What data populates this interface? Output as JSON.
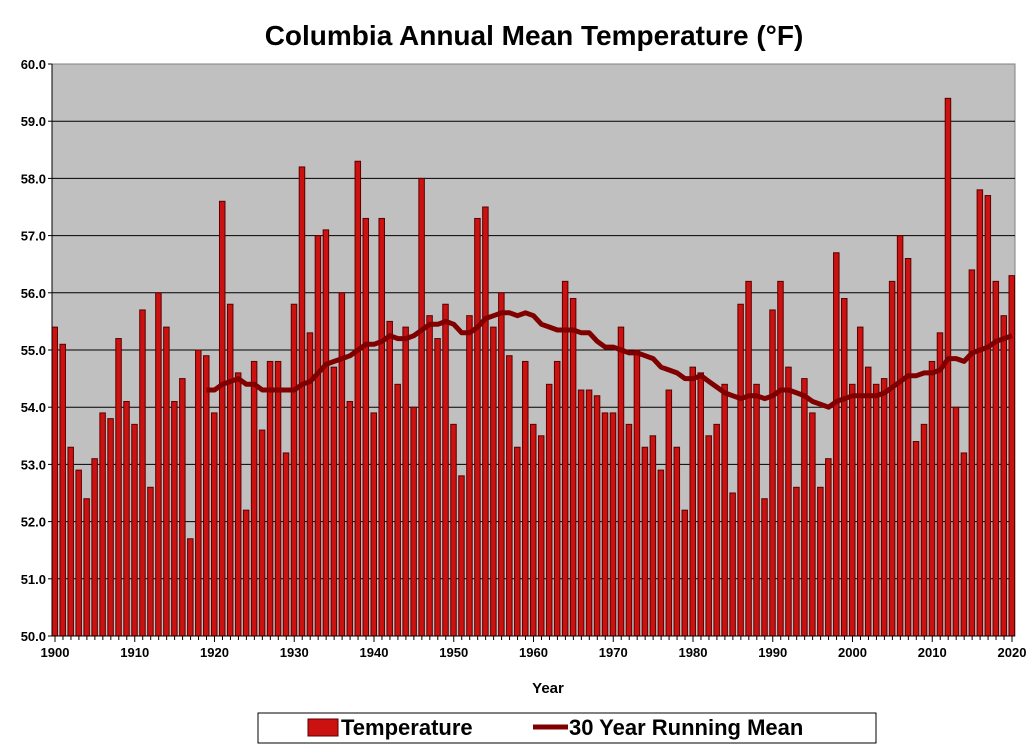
{
  "chart_data": {
    "type": "bar",
    "title": "Columbia Annual Mean Temperature (°F)",
    "xlabel": "Year",
    "ylabel": "",
    "ylim": [
      50.0,
      60.0
    ],
    "yticks": [
      "50.0",
      "51.0",
      "52.0",
      "53.0",
      "54.0",
      "55.0",
      "56.0",
      "57.0",
      "58.0",
      "59.0",
      "60.0"
    ],
    "xticks": [
      "1900",
      "1910",
      "1920",
      "1930",
      "1940",
      "1950",
      "1960",
      "1970",
      "1980",
      "1990",
      "2000",
      "2010",
      "2020"
    ],
    "grid": true,
    "legend_placement": "bottom",
    "colors": {
      "bar": "#cc1111",
      "bar_edge": "#5a0000",
      "line": "#800000",
      "plot_bg": "#c0c0c0"
    },
    "x_start": 1900,
    "series": [
      {
        "name": "Temperature",
        "type": "bar",
        "x_start": 1900,
        "values": [
          55.4,
          55.1,
          53.3,
          52.9,
          52.4,
          53.1,
          53.9,
          53.8,
          55.2,
          54.1,
          53.7,
          55.7,
          52.6,
          56.0,
          55.4,
          54.1,
          54.5,
          51.7,
          55.0,
          54.9,
          53.9,
          57.6,
          55.8,
          54.6,
          52.2,
          54.8,
          53.6,
          54.8,
          54.8,
          53.2,
          55.8,
          58.2,
          55.3,
          57.0,
          57.1,
          54.7,
          56.0,
          54.1,
          58.3,
          57.3,
          53.9,
          57.3,
          55.5,
          54.4,
          55.4,
          54.0,
          58.0,
          55.6,
          55.2,
          55.8,
          53.7,
          52.8,
          55.6,
          57.3,
          57.5,
          55.4,
          56.0,
          54.9,
          53.3,
          54.8,
          53.7,
          53.5,
          54.4,
          54.8,
          56.2,
          55.9,
          54.3,
          54.3,
          54.2,
          53.9,
          53.9,
          55.4,
          53.7,
          55.0,
          53.3,
          53.5,
          52.9,
          54.3,
          53.3,
          52.2,
          54.7,
          54.6,
          53.5,
          53.7,
          54.4,
          52.5,
          55.8,
          56.2,
          54.4,
          52.4,
          55.7,
          56.2,
          54.7,
          52.6,
          54.5,
          53.9,
          52.6,
          53.1,
          56.7,
          55.9,
          54.4,
          55.4,
          54.7,
          54.4,
          54.5,
          56.2,
          57.0,
          56.6,
          53.4,
          53.7,
          54.8,
          55.3,
          59.4,
          54.0,
          53.2,
          56.4,
          57.8,
          57.7,
          56.2,
          55.6,
          56.3
        ]
      },
      {
        "name": "30 Year Running Mean",
        "type": "line",
        "x_start": 1919,
        "values": [
          54.3,
          54.3,
          54.4,
          54.45,
          54.5,
          54.4,
          54.4,
          54.3,
          54.3,
          54.3,
          54.3,
          54.3,
          54.4,
          54.45,
          54.6,
          54.75,
          54.8,
          54.85,
          54.9,
          55.0,
          55.1,
          55.1,
          55.15,
          55.25,
          55.2,
          55.2,
          55.25,
          55.35,
          55.45,
          55.45,
          55.5,
          55.45,
          55.3,
          55.3,
          55.4,
          55.55,
          55.6,
          55.65,
          55.65,
          55.6,
          55.65,
          55.6,
          55.45,
          55.4,
          55.35,
          55.35,
          55.35,
          55.3,
          55.3,
          55.15,
          55.05,
          55.05,
          55.0,
          54.95,
          54.95,
          54.9,
          54.85,
          54.7,
          54.65,
          54.6,
          54.5,
          54.5,
          54.55,
          54.45,
          54.35,
          54.25,
          54.2,
          54.15,
          54.2,
          54.2,
          54.15,
          54.2,
          54.3,
          54.3,
          54.25,
          54.2,
          54.1,
          54.05,
          54.0,
          54.1,
          54.15,
          54.2,
          54.2,
          54.2,
          54.2,
          54.25,
          54.35,
          54.45,
          54.55,
          54.55,
          54.6,
          54.6,
          54.65,
          54.85,
          54.85,
          54.8,
          54.95,
          55.0,
          55.05,
          55.15,
          55.2,
          55.25
        ]
      }
    ]
  }
}
